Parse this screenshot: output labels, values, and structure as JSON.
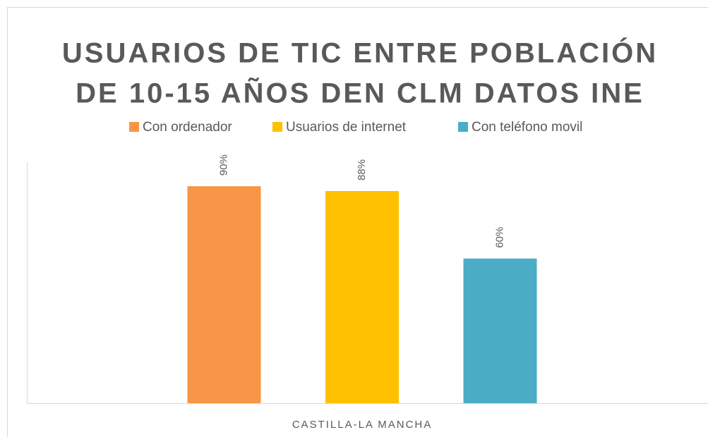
{
  "chart_data": {
    "type": "bar",
    "title": [
      "USUARIOS DE TIC ENTRE POBLACIÓN",
      "DE 10-15 AÑOS DEN CLM DATOS INE"
    ],
    "categories": [
      "CASTILLA-LA MANCHA"
    ],
    "series": [
      {
        "name": "Con ordenador",
        "color": "#f79646",
        "values": [
          90
        ],
        "value_labels": [
          "90%"
        ]
      },
      {
        "name": "Usuarios de internet",
        "color": "#ffc000",
        "values": [
          88
        ],
        "value_labels": [
          "88%"
        ]
      },
      {
        "name": "Con teléfono movil",
        "color": "#4bacc6",
        "values": [
          60
        ],
        "value_labels": [
          "60%"
        ]
      }
    ],
    "ylim": [
      0,
      100
    ],
    "legend": "top"
  }
}
